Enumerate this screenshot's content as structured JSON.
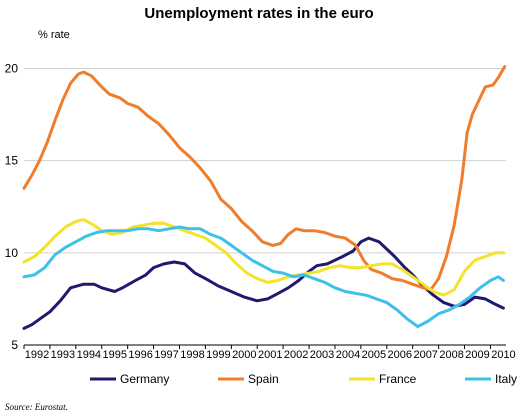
{
  "chart_data": {
    "type": "line",
    "title": "Unemployment rates in the euro",
    "unit_label": "% rate",
    "source": "Source: Eurostat.",
    "xlim": [
      1992,
      2010.6
    ],
    "ylim": [
      5,
      21
    ],
    "x_ticks": [
      1992,
      1993,
      1994,
      1995,
      1996,
      1997,
      1998,
      1999,
      2000,
      2001,
      2002,
      2003,
      2004,
      2005,
      2006,
      2007,
      2008,
      2009,
      2010
    ],
    "y_ticks": [
      5,
      10,
      15,
      20
    ],
    "gridlines": "horizontal at 5, 10, 15, 20",
    "legend_position": "bottom",
    "series": [
      {
        "name": "Germany",
        "color": "#1f1a6e",
        "points": [
          [
            1992.0,
            5.9
          ],
          [
            1992.3,
            6.1
          ],
          [
            1992.7,
            6.5
          ],
          [
            1993.0,
            6.8
          ],
          [
            1993.4,
            7.4
          ],
          [
            1993.8,
            8.1
          ],
          [
            1994.3,
            8.3
          ],
          [
            1994.7,
            8.3
          ],
          [
            1995.0,
            8.1
          ],
          [
            1995.5,
            7.9
          ],
          [
            1995.8,
            8.1
          ],
          [
            1996.3,
            8.5
          ],
          [
            1996.7,
            8.8
          ],
          [
            1997.0,
            9.2
          ],
          [
            1997.4,
            9.4
          ],
          [
            1997.8,
            9.5
          ],
          [
            1998.2,
            9.4
          ],
          [
            1998.6,
            8.9
          ],
          [
            1999.0,
            8.6
          ],
          [
            1999.5,
            8.2
          ],
          [
            2000.0,
            7.9
          ],
          [
            2000.5,
            7.6
          ],
          [
            2001.0,
            7.4
          ],
          [
            2001.4,
            7.5
          ],
          [
            2001.8,
            7.8
          ],
          [
            2002.2,
            8.1
          ],
          [
            2002.6,
            8.5
          ],
          [
            2003.0,
            9.0
          ],
          [
            2003.3,
            9.3
          ],
          [
            2003.7,
            9.4
          ],
          [
            2004.0,
            9.6
          ],
          [
            2004.3,
            9.8
          ],
          [
            2004.7,
            10.1
          ],
          [
            2005.0,
            10.6
          ],
          [
            2005.3,
            10.8
          ],
          [
            2005.7,
            10.6
          ],
          [
            2006.0,
            10.2
          ],
          [
            2006.3,
            9.8
          ],
          [
            2006.7,
            9.2
          ],
          [
            2007.0,
            8.8
          ],
          [
            2007.4,
            8.2
          ],
          [
            2007.8,
            7.7
          ],
          [
            2008.2,
            7.3
          ],
          [
            2008.6,
            7.1
          ],
          [
            2009.0,
            7.2
          ],
          [
            2009.4,
            7.6
          ],
          [
            2009.8,
            7.5
          ],
          [
            2010.2,
            7.2
          ],
          [
            2010.5,
            7.0
          ]
        ]
      },
      {
        "name": "Spain",
        "color": "#ef7d2d",
        "points": [
          [
            1992.0,
            13.5
          ],
          [
            1992.3,
            14.2
          ],
          [
            1992.6,
            15.0
          ],
          [
            1992.9,
            16.0
          ],
          [
            1993.2,
            17.2
          ],
          [
            1993.5,
            18.3
          ],
          [
            1993.8,
            19.2
          ],
          [
            1994.1,
            19.7
          ],
          [
            1994.3,
            19.8
          ],
          [
            1994.6,
            19.6
          ],
          [
            1995.0,
            19.0
          ],
          [
            1995.3,
            18.6
          ],
          [
            1995.7,
            18.4
          ],
          [
            1996.0,
            18.1
          ],
          [
            1996.4,
            17.9
          ],
          [
            1996.8,
            17.4
          ],
          [
            1997.2,
            17.0
          ],
          [
            1997.6,
            16.4
          ],
          [
            1998.0,
            15.7
          ],
          [
            1998.4,
            15.2
          ],
          [
            1998.8,
            14.6
          ],
          [
            1999.2,
            13.9
          ],
          [
            1999.6,
            12.9
          ],
          [
            2000.0,
            12.4
          ],
          [
            2000.4,
            11.7
          ],
          [
            2000.8,
            11.2
          ],
          [
            2001.2,
            10.6
          ],
          [
            2001.6,
            10.4
          ],
          [
            2001.9,
            10.5
          ],
          [
            2002.2,
            11.0
          ],
          [
            2002.5,
            11.3
          ],
          [
            2002.8,
            11.2
          ],
          [
            2003.2,
            11.2
          ],
          [
            2003.6,
            11.1
          ],
          [
            2004.0,
            10.9
          ],
          [
            2004.4,
            10.8
          ],
          [
            2004.8,
            10.4
          ],
          [
            2005.1,
            9.6
          ],
          [
            2005.4,
            9.1
          ],
          [
            2005.8,
            8.9
          ],
          [
            2006.2,
            8.6
          ],
          [
            2006.6,
            8.5
          ],
          [
            2007.0,
            8.3
          ],
          [
            2007.4,
            8.1
          ],
          [
            2007.7,
            8.0
          ],
          [
            2008.0,
            8.6
          ],
          [
            2008.3,
            9.8
          ],
          [
            2008.6,
            11.5
          ],
          [
            2008.9,
            14.0
          ],
          [
            2009.1,
            16.5
          ],
          [
            2009.3,
            17.5
          ],
          [
            2009.6,
            18.4
          ],
          [
            2009.8,
            19.0
          ],
          [
            2010.1,
            19.1
          ],
          [
            2010.3,
            19.5
          ],
          [
            2010.55,
            20.1
          ]
        ]
      },
      {
        "name": "France",
        "color": "#f4e32b",
        "points": [
          [
            1992.0,
            9.5
          ],
          [
            1992.4,
            9.8
          ],
          [
            1992.8,
            10.3
          ],
          [
            1993.2,
            10.9
          ],
          [
            1993.6,
            11.4
          ],
          [
            1994.0,
            11.7
          ],
          [
            1994.3,
            11.8
          ],
          [
            1994.7,
            11.5
          ],
          [
            1995.0,
            11.2
          ],
          [
            1995.4,
            11.0
          ],
          [
            1995.8,
            11.1
          ],
          [
            1996.2,
            11.4
          ],
          [
            1996.6,
            11.5
          ],
          [
            1997.0,
            11.6
          ],
          [
            1997.4,
            11.6
          ],
          [
            1997.8,
            11.4
          ],
          [
            1998.2,
            11.2
          ],
          [
            1998.6,
            11.0
          ],
          [
            1999.0,
            10.8
          ],
          [
            1999.4,
            10.4
          ],
          [
            1999.8,
            10.0
          ],
          [
            2000.2,
            9.4
          ],
          [
            2000.6,
            8.9
          ],
          [
            2001.0,
            8.6
          ],
          [
            2001.4,
            8.4
          ],
          [
            2001.8,
            8.5
          ],
          [
            2002.2,
            8.7
          ],
          [
            2002.6,
            8.8
          ],
          [
            2003.0,
            8.9
          ],
          [
            2003.4,
            9.0
          ],
          [
            2003.8,
            9.2
          ],
          [
            2004.2,
            9.3
          ],
          [
            2004.6,
            9.2
          ],
          [
            2005.0,
            9.2
          ],
          [
            2005.4,
            9.3
          ],
          [
            2005.8,
            9.4
          ],
          [
            2006.2,
            9.4
          ],
          [
            2006.6,
            9.1
          ],
          [
            2007.0,
            8.7
          ],
          [
            2007.4,
            8.3
          ],
          [
            2007.8,
            7.9
          ],
          [
            2008.2,
            7.7
          ],
          [
            2008.6,
            8.0
          ],
          [
            2009.0,
            9.0
          ],
          [
            2009.4,
            9.6
          ],
          [
            2009.8,
            9.8
          ],
          [
            2010.2,
            10.0
          ],
          [
            2010.5,
            10.0
          ]
        ]
      },
      {
        "name": "Italy",
        "color": "#3ec0ea",
        "points": [
          [
            1992.0,
            8.7
          ],
          [
            1992.4,
            8.8
          ],
          [
            1992.8,
            9.2
          ],
          [
            1993.2,
            9.9
          ],
          [
            1993.6,
            10.3
          ],
          [
            1994.0,
            10.6
          ],
          [
            1994.4,
            10.9
          ],
          [
            1994.8,
            11.1
          ],
          [
            1995.2,
            11.2
          ],
          [
            1995.6,
            11.2
          ],
          [
            1996.0,
            11.2
          ],
          [
            1996.4,
            11.3
          ],
          [
            1996.8,
            11.3
          ],
          [
            1997.2,
            11.2
          ],
          [
            1997.6,
            11.3
          ],
          [
            1998.0,
            11.4
          ],
          [
            1998.4,
            11.3
          ],
          [
            1998.8,
            11.3
          ],
          [
            1999.2,
            11.0
          ],
          [
            1999.6,
            10.8
          ],
          [
            2000.0,
            10.4
          ],
          [
            2000.4,
            10.0
          ],
          [
            2000.8,
            9.6
          ],
          [
            2001.2,
            9.3
          ],
          [
            2001.6,
            9.0
          ],
          [
            2002.0,
            8.9
          ],
          [
            2002.4,
            8.7
          ],
          [
            2002.8,
            8.8
          ],
          [
            2003.2,
            8.6
          ],
          [
            2003.6,
            8.4
          ],
          [
            2004.0,
            8.1
          ],
          [
            2004.4,
            7.9
          ],
          [
            2004.8,
            7.8
          ],
          [
            2005.2,
            7.7
          ],
          [
            2005.6,
            7.5
          ],
          [
            2006.0,
            7.3
          ],
          [
            2006.4,
            6.9
          ],
          [
            2006.8,
            6.4
          ],
          [
            2007.2,
            6.0
          ],
          [
            2007.6,
            6.3
          ],
          [
            2008.0,
            6.7
          ],
          [
            2008.4,
            6.9
          ],
          [
            2008.8,
            7.2
          ],
          [
            2009.2,
            7.6
          ],
          [
            2009.6,
            8.1
          ],
          [
            2010.0,
            8.5
          ],
          [
            2010.3,
            8.7
          ],
          [
            2010.5,
            8.5
          ]
        ]
      }
    ]
  }
}
